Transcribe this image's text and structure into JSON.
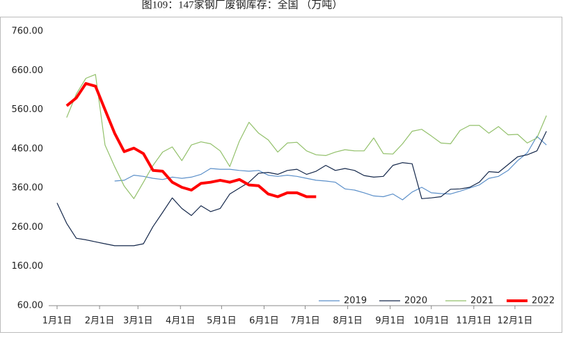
{
  "chart_data": {
    "type": "line",
    "title": "图109：147家钢厂废钢库存：全国 （万吨）",
    "x": [
      0,
      7,
      14,
      21,
      28,
      35,
      42,
      49,
      56,
      63,
      70,
      77,
      84,
      91,
      98,
      105,
      112,
      119,
      126,
      133,
      140,
      147,
      154,
      161,
      168,
      175,
      182,
      189,
      196,
      203,
      210,
      217,
      224,
      231,
      238,
      245,
      252,
      259,
      266,
      273,
      280,
      287,
      294,
      301,
      308,
      315,
      322,
      329,
      336,
      343,
      350,
      357
    ],
    "xlim": [
      0,
      365
    ],
    "xticks": [
      {
        "value": 0,
        "label": "1月1日"
      },
      {
        "value": 31,
        "label": "2月1日"
      },
      {
        "value": 59,
        "label": "3月1日"
      },
      {
        "value": 90,
        "label": "4月1日"
      },
      {
        "value": 120,
        "label": "5月1日"
      },
      {
        "value": 151,
        "label": "6月1日"
      },
      {
        "value": 181,
        "label": "7月1日"
      },
      {
        "value": 212,
        "label": "8月1日"
      },
      {
        "value": 243,
        "label": "9月1日"
      },
      {
        "value": 273,
        "label": "10月1日"
      },
      {
        "value": 304,
        "label": "11月1日"
      },
      {
        "value": 334,
        "label": "12月1日"
      }
    ],
    "ylim": [
      60,
      760
    ],
    "yticks": [
      {
        "value": 60,
        "label": "60.00"
      },
      {
        "value": 160,
        "label": "160.00"
      },
      {
        "value": 260,
        "label": "260.00"
      },
      {
        "value": 360,
        "label": "360.00"
      },
      {
        "value": 460,
        "label": "460.00"
      },
      {
        "value": 560,
        "label": "560.00"
      },
      {
        "value": 660,
        "label": "660.00"
      },
      {
        "value": 760,
        "label": "760.00"
      }
    ],
    "grid": false,
    "legend": "bottom-right",
    "series": [
      {
        "name": "2019",
        "color": "#5b8fc9",
        "width": 1.2,
        "values": [
          null,
          null,
          null,
          null,
          null,
          null,
          378,
          380,
          393,
          390,
          385,
          382,
          388,
          385,
          388,
          395,
          410,
          408,
          408,
          405,
          403,
          405,
          393,
          390,
          393,
          390,
          385,
          380,
          378,
          375,
          358,
          355,
          348,
          340,
          338,
          345,
          330,
          350,
          362,
          348,
          346,
          345,
          352,
          360,
          368,
          385,
          390,
          405,
          430,
          450,
          492,
          470
        ]
      },
      {
        "name": "2020",
        "color": "#14274a",
        "width": 1.2,
        "values": [
          322,
          270,
          232,
          228,
          223,
          218,
          213,
          213,
          213,
          218,
          262,
          298,
          335,
          308,
          290,
          315,
          300,
          308,
          345,
          360,
          375,
          398,
          400,
          395,
          405,
          408,
          395,
          403,
          418,
          405,
          410,
          405,
          392,
          388,
          390,
          418,
          425,
          422,
          333,
          335,
          338,
          357,
          358,
          362,
          375,
          402,
          400,
          420,
          440,
          445,
          455,
          505
        ]
      },
      {
        "name": "2021",
        "color": "#92c06a",
        "width": 1.2,
        "values": [
          null,
          540,
          600,
          640,
          650,
          470,
          415,
          365,
          333,
          375,
          418,
          452,
          465,
          430,
          470,
          478,
          473,
          455,
          415,
          480,
          528,
          500,
          483,
          452,
          475,
          477,
          455,
          445,
          443,
          452,
          458,
          455,
          455,
          488,
          448,
          447,
          473,
          505,
          510,
          493,
          475,
          473,
          507,
          520,
          520,
          500,
          517,
          496,
          497,
          475,
          488,
          545
        ]
      },
      {
        "name": "2022",
        "color": "#ff0000",
        "width": 4,
        "values": [
          null,
          570,
          590,
          627,
          620,
          560,
          500,
          453,
          462,
          448,
          405,
          403,
          375,
          362,
          355,
          372,
          375,
          380,
          375,
          382,
          368,
          366,
          345,
          338,
          348,
          348,
          338,
          338,
          null,
          null,
          null,
          null,
          null,
          null,
          null,
          null,
          null,
          null,
          null,
          null,
          null,
          null,
          null,
          null,
          null,
          null,
          null,
          null,
          null,
          null,
          null,
          null
        ]
      }
    ]
  }
}
